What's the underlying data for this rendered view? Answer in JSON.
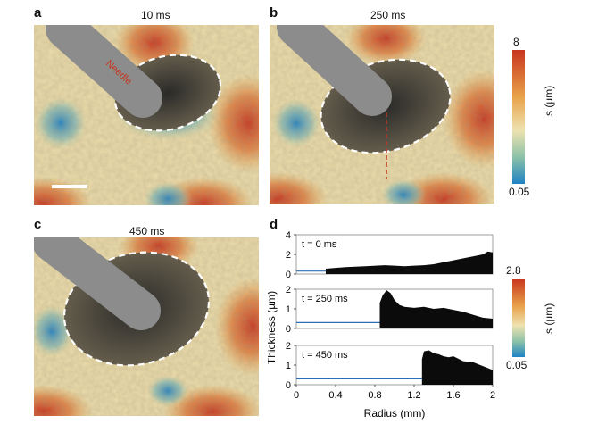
{
  "panels": {
    "a": {
      "letter": "a",
      "time": "10 ms",
      "needle_label": "Needle"
    },
    "b": {
      "letter": "b",
      "time": "250 ms"
    },
    "c": {
      "letter": "c",
      "time": "450 ms"
    },
    "d": {
      "letter": "d"
    }
  },
  "colorbar_top": {
    "max": "8",
    "min": "0.05",
    "label": "s (µm)"
  },
  "colorbar_bottom": {
    "max": "2.8",
    "min": "0.05",
    "label": "s (µm)"
  },
  "colors": {
    "needle": "#8c8c8c",
    "hot": "#c8351e",
    "warm": "#e8a24a",
    "mid": "#eee2b0",
    "cool": "#1f82c4",
    "fill": "#0b0b0b",
    "baseline": "#2a6fb5"
  },
  "chart_data": {
    "type": "area",
    "xlabel": "Radius (mm)",
    "ylabel": "Thickness (µm)",
    "xlim": [
      0,
      2
    ],
    "ylim": [
      0,
      4
    ],
    "x_ticks": [
      "0",
      "0.4",
      "0.8",
      "1.2",
      "1.6",
      "2"
    ],
    "subplots": [
      {
        "label": "t = 0 ms",
        "y_ticks": [
          "0",
          "2",
          "4"
        ],
        "x": [
          0.0,
          0.25,
          0.3,
          0.5,
          0.7,
          0.9,
          1.0,
          1.1,
          1.2,
          1.3,
          1.4,
          1.5,
          1.6,
          1.7,
          1.8,
          1.9,
          1.95,
          2.0
        ],
        "y": [
          0.3,
          0.3,
          0.55,
          0.7,
          0.8,
          0.9,
          0.85,
          0.8,
          0.85,
          0.9,
          1.0,
          1.2,
          1.4,
          1.6,
          1.8,
          2.0,
          2.3,
          2.2
        ]
      },
      {
        "label": "t = 250 ms",
        "y_ticks": [
          "0",
          "1",
          "2"
        ],
        "x": [
          0.0,
          0.84,
          0.85,
          0.88,
          0.92,
          0.96,
          1.0,
          1.05,
          1.1,
          1.2,
          1.3,
          1.4,
          1.5,
          1.6,
          1.7,
          1.8,
          1.9,
          2.0
        ],
        "y": [
          0.3,
          0.3,
          1.3,
          1.7,
          1.95,
          1.8,
          1.45,
          1.2,
          1.1,
          1.05,
          1.1,
          1.0,
          1.05,
          0.95,
          0.85,
          0.7,
          0.55,
          0.5
        ]
      },
      {
        "label": "t = 450 ms",
        "y_ticks": [
          "0",
          "1",
          "2"
        ],
        "x": [
          0.0,
          1.27,
          1.28,
          1.3,
          1.35,
          1.4,
          1.45,
          1.5,
          1.55,
          1.6,
          1.7,
          1.8,
          1.9,
          2.0
        ],
        "y": [
          0.3,
          0.3,
          1.3,
          1.7,
          1.75,
          1.6,
          1.55,
          1.45,
          1.4,
          1.45,
          1.2,
          1.15,
          0.95,
          0.75
        ]
      }
    ]
  }
}
